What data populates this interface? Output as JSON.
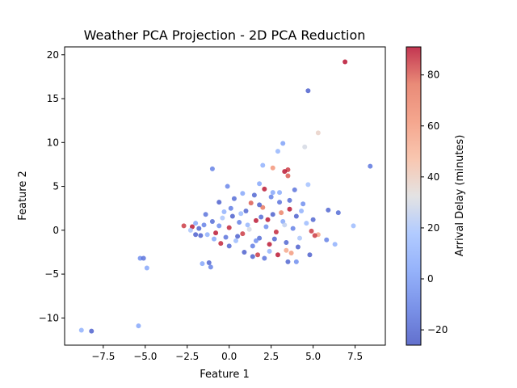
{
  "chart_data": {
    "type": "scatter",
    "title": "Weather PCA Projection - 2D PCA Reduction",
    "xlabel": "Feature 1",
    "ylabel": "Feature 2",
    "xlim": [
      -9.8,
      9.3
    ],
    "ylim": [
      -13.1,
      20.9
    ],
    "xticks": [
      -7.5,
      -5.0,
      -2.5,
      0.0,
      2.5,
      5.0,
      7.5
    ],
    "xtick_labels": [
      "−7.5",
      "−5.0",
      "−2.5",
      "0.0",
      "2.5",
      "5.0",
      "7.5"
    ],
    "yticks": [
      -10,
      -5,
      0,
      5,
      10,
      15,
      20
    ],
    "ytick_labels": [
      "−10",
      "−5",
      "0",
      "5",
      "10",
      "15",
      "20"
    ],
    "grid": false,
    "colorbar": {
      "label": "Arrival Delay (minutes)",
      "range": [
        -26,
        91
      ],
      "ticks": [
        -20,
        0,
        20,
        40,
        60,
        80
      ],
      "tick_labels": [
        "−20",
        "0",
        "20",
        "40",
        "60",
        "80"
      ],
      "colormap": "coolwarm"
    },
    "marker_alpha": 0.8,
    "points": [
      [
        6.9,
        19.2,
        91
      ],
      [
        4.7,
        15.9,
        -22
      ],
      [
        5.3,
        11.1,
        38
      ],
      [
        3.2,
        9.9,
        2
      ],
      [
        4.5,
        9.5,
        30
      ],
      [
        2.9,
        9.0,
        12
      ],
      [
        8.4,
        7.3,
        -14
      ],
      [
        -1.0,
        7.0,
        -10
      ],
      [
        3.5,
        6.9,
        85
      ],
      [
        3.3,
        6.7,
        90
      ],
      [
        2.6,
        7.1,
        62
      ],
      [
        3.5,
        6.2,
        80
      ],
      [
        2.0,
        7.4,
        10
      ],
      [
        1.8,
        5.3,
        5
      ],
      [
        4.7,
        5.2,
        18
      ],
      [
        -0.1,
        5.0,
        -8
      ],
      [
        3.9,
        4.6,
        -15
      ],
      [
        3.0,
        4.3,
        8
      ],
      [
        2.1,
        4.7,
        90
      ],
      [
        6.5,
        2.0,
        -18
      ],
      [
        5.9,
        2.3,
        -20
      ],
      [
        7.4,
        0.5,
        15
      ],
      [
        5.3,
        -0.5,
        55
      ],
      [
        5.1,
        -0.6,
        85
      ],
      [
        6.3,
        -1.6,
        10
      ],
      [
        5.8,
        -1.1,
        -10
      ],
      [
        4.8,
        -2.8,
        -22
      ],
      [
        4.0,
        -3.6,
        -5
      ],
      [
        3.4,
        -2.3,
        55
      ],
      [
        2.4,
        -1.6,
        90
      ],
      [
        3.5,
        -3.6,
        -20
      ],
      [
        1.4,
        -3.0,
        -22
      ],
      [
        -1.6,
        -3.8,
        5
      ],
      [
        -1.2,
        -3.7,
        -20
      ],
      [
        -1.1,
        -4.2,
        -10
      ],
      [
        -5.3,
        -3.2,
        -5
      ],
      [
        -5.1,
        -3.2,
        -15
      ],
      [
        -4.9,
        -4.3,
        5
      ],
      [
        -8.8,
        -11.4,
        10
      ],
      [
        -8.2,
        -11.5,
        -22
      ],
      [
        -5.4,
        -10.9,
        5
      ],
      [
        -2.7,
        0.5,
        85
      ],
      [
        -2.2,
        0.4,
        90
      ],
      [
        -2.0,
        0.8,
        5
      ],
      [
        -1.8,
        0.2,
        -20
      ],
      [
        -1.5,
        0.6,
        -10
      ],
      [
        -1.3,
        -0.5,
        10
      ],
      [
        -1.0,
        1.0,
        -18
      ],
      [
        -0.8,
        -0.3,
        90
      ],
      [
        -0.6,
        0.5,
        -5
      ],
      [
        -0.4,
        1.4,
        20
      ],
      [
        -0.2,
        -0.8,
        -15
      ],
      [
        0.0,
        0.3,
        88
      ],
      [
        0.2,
        1.6,
        -22
      ],
      [
        0.4,
        -1.2,
        15
      ],
      [
        0.6,
        0.9,
        -10
      ],
      [
        0.8,
        -0.4,
        85
      ],
      [
        1.0,
        2.2,
        -20
      ],
      [
        1.2,
        0.1,
        30
      ],
      [
        1.4,
        -1.8,
        -12
      ],
      [
        1.6,
        1.1,
        90
      ],
      [
        1.8,
        -0.9,
        -18
      ],
      [
        2.0,
        2.6,
        75
      ],
      [
        2.2,
        0.4,
        -5
      ],
      [
        2.4,
        -2.4,
        12
      ],
      [
        2.6,
        1.8,
        -22
      ],
      [
        2.8,
        -0.2,
        88
      ],
      [
        3.0,
        3.2,
        -15
      ],
      [
        3.2,
        1.0,
        5
      ],
      [
        3.4,
        -1.4,
        -20
      ],
      [
        3.6,
        2.4,
        90
      ],
      [
        3.8,
        0.2,
        -10
      ],
      [
        4.0,
        1.6,
        -22
      ],
      [
        4.2,
        -0.9,
        20
      ],
      [
        4.4,
        3.0,
        -5
      ],
      [
        4.6,
        0.8,
        15
      ],
      [
        -0.6,
        3.2,
        -22
      ],
      [
        0.3,
        3.6,
        -18
      ],
      [
        0.8,
        4.2,
        5
      ],
      [
        1.5,
        4.0,
        -20
      ],
      [
        1.3,
        3.1,
        80
      ],
      [
        0.1,
        2.5,
        -12
      ],
      [
        -0.3,
        2.1,
        10
      ],
      [
        0.9,
        -2.5,
        -22
      ],
      [
        1.7,
        -2.8,
        85
      ],
      [
        2.1,
        -3.2,
        -15
      ],
      [
        2.9,
        -2.8,
        90
      ],
      [
        0.0,
        -1.8,
        -20
      ],
      [
        -0.9,
        -1.0,
        5
      ],
      [
        -1.7,
        -0.6,
        -22
      ],
      [
        -2.3,
        0.0,
        20
      ],
      [
        2.5,
        3.8,
        -10
      ],
      [
        3.1,
        2.0,
        70
      ],
      [
        1.9,
        1.5,
        -18
      ],
      [
        1.1,
        0.6,
        12
      ],
      [
        0.5,
        -0.7,
        -22
      ],
      [
        -0.5,
        -1.5,
        88
      ],
      [
        1.6,
        -1.2,
        -5
      ],
      [
        2.7,
        -1.0,
        -20
      ],
      [
        3.3,
        0.6,
        25
      ],
      [
        4.1,
        -1.9,
        -22
      ],
      [
        3.7,
        -2.6,
        60
      ],
      [
        2.3,
        1.2,
        90
      ],
      [
        -1.4,
        1.8,
        -15
      ],
      [
        -2.0,
        -0.5,
        -22
      ],
      [
        0.7,
        1.9,
        15
      ],
      [
        1.8,
        2.9,
        -22
      ],
      [
        2.6,
        4.3,
        5
      ],
      [
        3.6,
        3.4,
        -18
      ],
      [
        4.3,
        2.2,
        10
      ],
      [
        5.0,
        1.2,
        -20
      ],
      [
        4.9,
        -0.1,
        85
      ]
    ]
  }
}
